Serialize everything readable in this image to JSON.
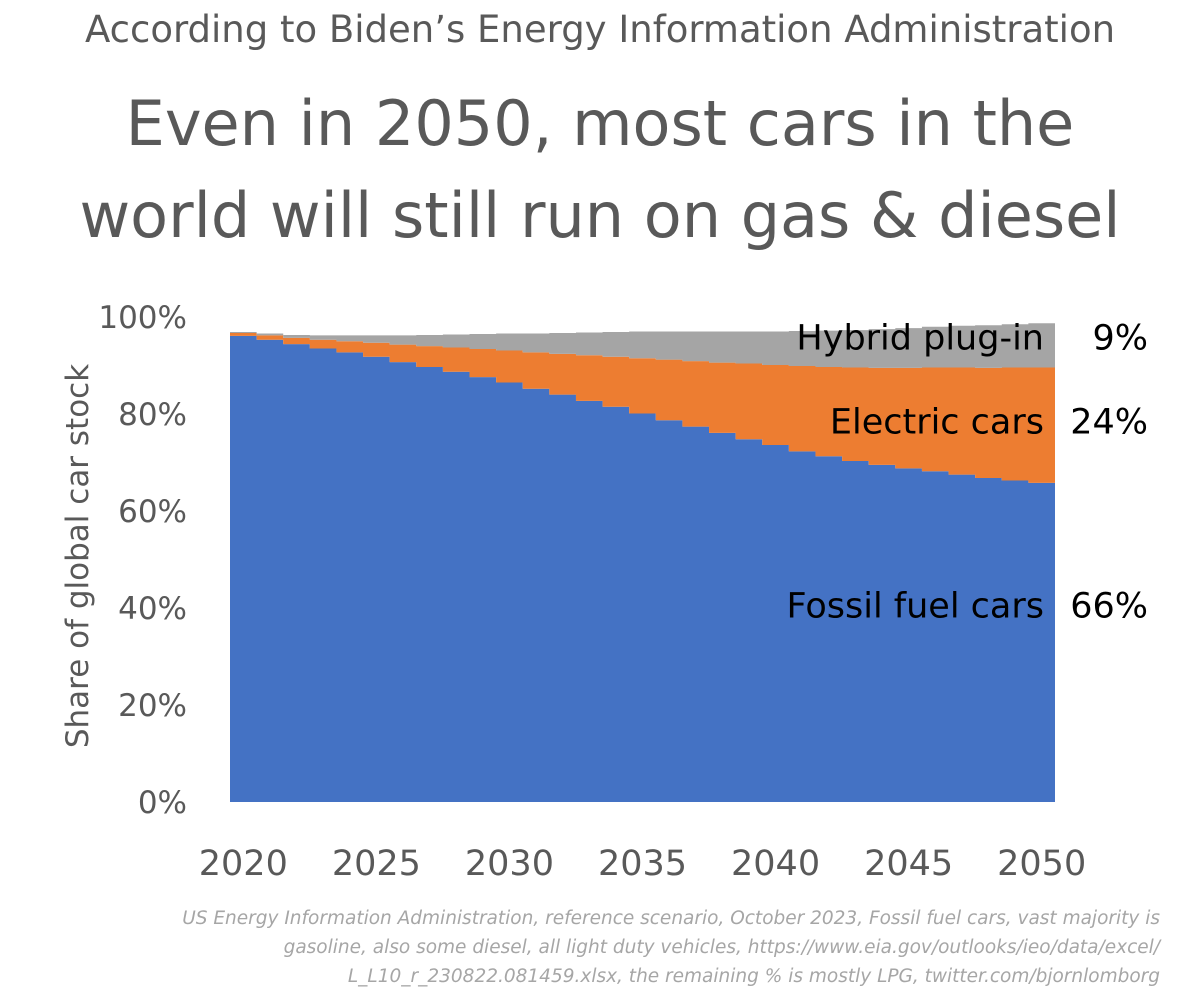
{
  "header": {
    "subtitle": "According to Biden’s Energy Information Administration",
    "title_lines": [
      "Even in 2050, most cars in the",
      "world will still run on gas & diesel"
    ]
  },
  "chart_data": {
    "type": "area",
    "xlabel": "",
    "ylabel": "Share of global car stock",
    "ylim": [
      0,
      100
    ],
    "yticks": [
      "0%",
      "20%",
      "40%",
      "60%",
      "80%",
      "100%"
    ],
    "xticks": [
      "2020",
      "2025",
      "2030",
      "2035",
      "2040",
      "2045",
      "2050"
    ],
    "grid": false,
    "legend": "none (inline labels at right)",
    "x": [
      2020,
      2021,
      2022,
      2023,
      2024,
      2025,
      2026,
      2027,
      2028,
      2029,
      2030,
      2031,
      2032,
      2033,
      2034,
      2035,
      2036,
      2037,
      2038,
      2039,
      2040,
      2041,
      2042,
      2043,
      2044,
      2045,
      2046,
      2047,
      2048,
      2049,
      2050
    ],
    "series": [
      {
        "name": "Fossil fuel cars",
        "label": "Fossil fuel cars",
        "value_label": "66%",
        "color": "#4472c4",
        "values": [
          96.1,
          95.3,
          94.4,
          93.5,
          92.7,
          91.8,
          90.7,
          89.7,
          88.7,
          87.6,
          86.5,
          85.2,
          84.0,
          82.7,
          81.5,
          80.1,
          78.7,
          77.4,
          76.1,
          74.8,
          73.6,
          72.3,
          71.3,
          70.3,
          69.5,
          68.8,
          68.2,
          67.5,
          66.8,
          66.3,
          65.8
        ]
      },
      {
        "name": "Electric cars",
        "label": "Electric cars",
        "value_label": "24%",
        "color": "#ed7d31",
        "values": [
          0.6,
          0.9,
          1.3,
          1.8,
          2.3,
          2.9,
          3.6,
          4.3,
          5.0,
          5.8,
          6.6,
          7.5,
          8.4,
          9.4,
          10.3,
          11.4,
          12.5,
          13.5,
          14.5,
          15.6,
          16.5,
          17.6,
          18.4,
          19.3,
          20.0,
          20.7,
          21.4,
          22.1,
          22.7,
          23.3,
          23.8
        ]
      },
      {
        "name": "Hybrid plug-in",
        "label": "Hybrid plug-in",
        "value_label": "9%",
        "color": "#a5a5a5",
        "values": [
          0.2,
          0.4,
          0.6,
          0.9,
          1.2,
          1.5,
          1.9,
          2.3,
          2.7,
          3.1,
          3.5,
          3.9,
          4.3,
          4.7,
          5.1,
          5.5,
          5.8,
          6.1,
          6.4,
          6.6,
          6.9,
          7.2,
          7.5,
          7.7,
          8.0,
          8.2,
          8.4,
          8.6,
          8.8,
          8.9,
          9.1
        ]
      }
    ]
  },
  "source_lines": [
    "US Energy Information Administration, reference scenario, October 2023, Fossil fuel cars, vast majority is",
    "gasoline, also some diesel, all light duty vehicles, https://www.eia.gov/outlooks/ieo/data/excel/",
    "L_L10_r_230822.081459.xlsx, the remaining % is mostly LPG, twitter.com/bjornlomborg"
  ]
}
